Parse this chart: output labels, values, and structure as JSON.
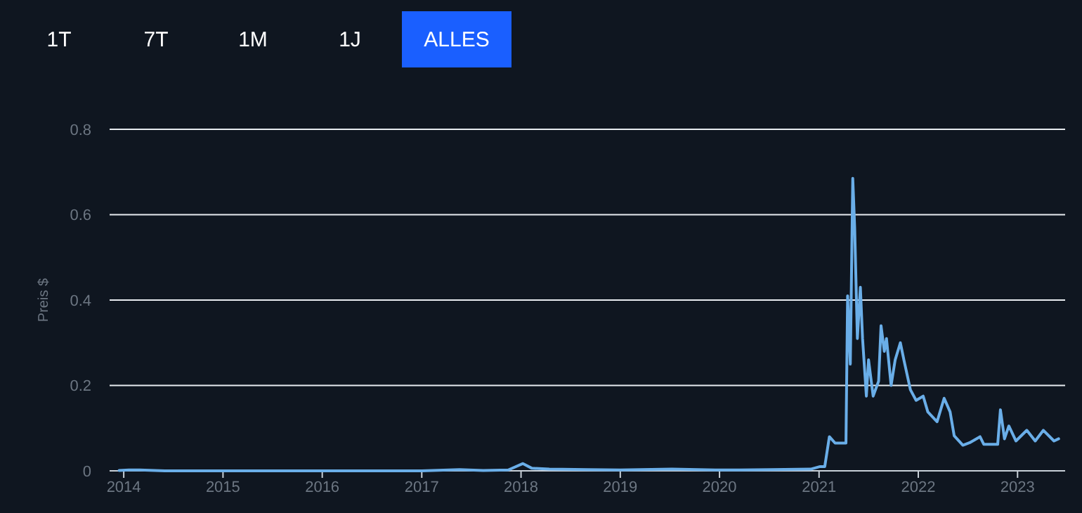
{
  "chart_data": {
    "type": "line",
    "ylabel": "Preis $",
    "annotations": [
      "1T",
      "7T",
      "1M",
      "1J",
      "ALLES"
    ],
    "x": [
      "2013-12-15",
      "2014-01-20",
      "2014-03-01",
      "2014-06-01",
      "2015-01-01",
      "2016-01-01",
      "2017-01-01",
      "2017-05-20",
      "2017-08-15",
      "2017-11-15",
      "2018-01-08",
      "2018-02-10",
      "2018-04-15",
      "2018-09-01",
      "2019-01-01",
      "2019-07-10",
      "2020-01-01",
      "2020-03-15",
      "2020-07-10",
      "2020-12-01",
      "2021-01-05",
      "2021-01-22",
      "2021-02-08",
      "2021-03-01",
      "2021-04-10",
      "2021-04-16",
      "2021-04-26",
      "2021-05-05",
      "2021-05-12",
      "2021-05-22",
      "2021-06-02",
      "2021-06-10",
      "2021-06-24",
      "2021-07-02",
      "2021-07-19",
      "2021-08-08",
      "2021-08-17",
      "2021-08-29",
      "2021-09-06",
      "2021-09-23",
      "2021-10-08",
      "2021-10-27",
      "2021-11-09",
      "2021-12-03",
      "2021-12-24",
      "2022-01-19",
      "2022-02-05",
      "2022-03-11",
      "2022-04-06",
      "2022-04-28",
      "2022-05-13",
      "2022-06-14",
      "2022-07-09",
      "2022-08-16",
      "2022-08-30",
      "2022-10-20",
      "2022-10-30",
      "2022-11-14",
      "2022-11-30",
      "2022-12-26",
      "2023-02-04",
      "2023-03-07",
      "2023-04-06",
      "2023-05-15",
      "2023-06-01"
    ],
    "series": [
      {
        "color": "#6aaee8",
        "values": [
          0.001,
          0.002,
          0.002,
          0,
          0,
          0,
          0,
          0.003,
          0.001,
          0.002,
          0.017,
          0.006,
          0.004,
          0.003,
          0.002,
          0.004,
          0.002,
          0.002,
          0.003,
          0.004,
          0.01,
          0.01,
          0.08,
          0.065,
          0.065,
          0.41,
          0.25,
          0.685,
          0.57,
          0.31,
          0.43,
          0.31,
          0.175,
          0.26,
          0.175,
          0.21,
          0.34,
          0.28,
          0.31,
          0.2,
          0.26,
          0.3,
          0.26,
          0.19,
          0.165,
          0.175,
          0.138,
          0.115,
          0.17,
          0.138,
          0.082,
          0.06,
          0.066,
          0.08,
          0.062,
          0.062,
          0.143,
          0.075,
          0.105,
          0.07,
          0.095,
          0.07,
          0.095,
          0.07,
          0.075
        ]
      }
    ],
    "xlim": [
      "2013-11-10",
      "2023-06-25"
    ],
    "xticks": [
      "2014",
      "2015",
      "2016",
      "2017",
      "2018",
      "2019",
      "2020",
      "2021",
      "2022",
      "2023"
    ],
    "ylim": [
      0,
      0.8
    ],
    "yticks": [
      0,
      0.2,
      0.4,
      0.6,
      0.8
    ],
    "grid": "y",
    "marker": "none",
    "line_style": "solid"
  }
}
